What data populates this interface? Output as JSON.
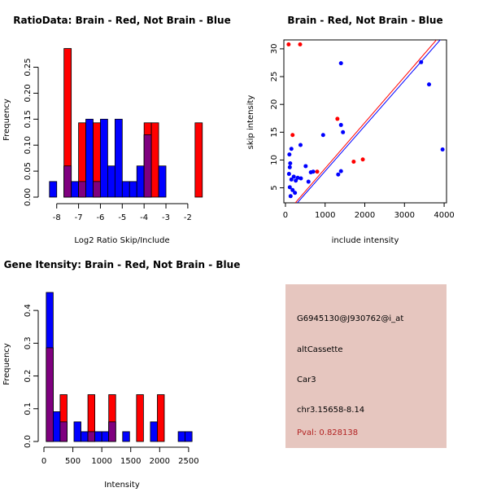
{
  "colors": {
    "brain": "#ff0000",
    "not_brain": "#0000ff",
    "overlap": "#7f007f",
    "panel_bg": "#e6c6bf",
    "pval_text": "#b22222"
  },
  "chart_data": [
    {
      "type": "bar",
      "title": "RatioData: Brain - Red, Not Brain - Blue",
      "xlabel": "Log2 Ratio Skip/Include",
      "ylabel": "Frequency",
      "xlim": [
        -8.4,
        -1.4
      ],
      "ylim": [
        0,
        0.29
      ],
      "xticks": [
        -8,
        -7,
        -6,
        -5,
        -4,
        -3,
        -2
      ],
      "yticks": [
        0.0,
        0.05,
        0.1,
        0.15,
        0.2,
        0.25
      ],
      "bin_width": 0.333,
      "bin_starts": [
        -8.333,
        -8.0,
        -7.667,
        -7.333,
        -7.0,
        -6.667,
        -6.333,
        -6.0,
        -5.667,
        -5.333,
        -5.0,
        -4.667,
        -4.333,
        -4.0,
        -3.667,
        -3.333,
        -3.0,
        -2.667,
        -2.333,
        -2.0,
        -1.667
      ],
      "series": [
        {
          "name": "Brain",
          "color": "#ff0000",
          "values": [
            0,
            0,
            0.286,
            0,
            0.143,
            0,
            0.143,
            0,
            0,
            0,
            0,
            0,
            0,
            0.143,
            0.143,
            0,
            0,
            0,
            0,
            0,
            0.143
          ]
        },
        {
          "name": "Not Brain",
          "color": "#0000ff",
          "values": [
            0.03,
            0,
            0.06,
            0.03,
            0.03,
            0.15,
            0.03,
            0.15,
            0.06,
            0.15,
            0.03,
            0.03,
            0.06,
            0.12,
            0,
            0.06,
            0,
            0,
            0,
            0,
            0
          ]
        }
      ]
    },
    {
      "type": "scatter",
      "title": "Brain - Red, Not Brain - Blue",
      "xlabel": "include intensity",
      "ylabel": "skip intensity",
      "xlim": [
        -40,
        4060
      ],
      "ylim": [
        2.3,
        31.6
      ],
      "xticks": [
        0,
        1000,
        2000,
        3000,
        4000
      ],
      "yticks": [
        5,
        10,
        15,
        20,
        25,
        30
      ],
      "series": [
        {
          "name": "Brain",
          "color": "#ff0000",
          "points": [
            [
              80,
              30.8
            ],
            [
              370,
              30.8
            ],
            [
              180,
              14.5
            ],
            [
              1310,
              17.4
            ],
            [
              1720,
              9.7
            ],
            [
              1950,
              10.1
            ],
            [
              800,
              7.9
            ]
          ]
        },
        {
          "name": "Not Brain",
          "color": "#0000ff",
          "points": [
            [
              1400,
              27.4
            ],
            [
              3620,
              23.6
            ],
            [
              3960,
              11.9
            ],
            [
              3420,
              27.6
            ],
            [
              100,
              11
            ],
            [
              150,
              12
            ],
            [
              380,
              12.7
            ],
            [
              950,
              14.5
            ],
            [
              1400,
              16.3
            ],
            [
              1450,
              15
            ],
            [
              110,
              8.7
            ],
            [
              120,
              9.4
            ],
            [
              90,
              7.5
            ],
            [
              150,
              6.5
            ],
            [
              210,
              7
            ],
            [
              260,
              6.3
            ],
            [
              310,
              6.8
            ],
            [
              390,
              6.7
            ],
            [
              510,
              8.9
            ],
            [
              640,
              7.8
            ],
            [
              700,
              7.9
            ],
            [
              110,
              5.1
            ],
            [
              180,
              4.6
            ],
            [
              130,
              3.5
            ],
            [
              240,
              4.1
            ],
            [
              580,
              6.1
            ],
            [
              1330,
              7.4
            ],
            [
              1400,
              8
            ]
          ]
        }
      ],
      "lines": [
        {
          "name": "Brain fit",
          "color": "#ff0000",
          "from": [
            250,
            2.3
          ],
          "to": [
            4060,
            33.7
          ]
        },
        {
          "name": "Not Brain fit",
          "color": "#0000ff",
          "from": [
            300,
            2.3
          ],
          "to": [
            4060,
            32.9
          ]
        }
      ]
    },
    {
      "type": "bar",
      "title": "Gene Itensity: Brain - Red, Not Brain - Blue",
      "xlabel": "Intensity",
      "ylabel": "Frequency",
      "xlim": [
        0,
        2600
      ],
      "ylim": [
        0,
        0.46
      ],
      "xticks": [
        0,
        500,
        1000,
        1500,
        2000,
        2500
      ],
      "yticks": [
        0.0,
        0.1,
        0.2,
        0.3,
        0.4
      ],
      "bin_width": 120,
      "bin_starts": [
        40,
        160,
        280,
        400,
        520,
        640,
        760,
        880,
        1000,
        1120,
        1240,
        1360,
        1480,
        1600,
        1720,
        1840,
        1960,
        2080,
        2200,
        2320,
        2440
      ],
      "series": [
        {
          "name": "Brain",
          "color": "#ff0000",
          "values": [
            0.286,
            0,
            0.143,
            0,
            0,
            0,
            0.143,
            0,
            0,
            0.143,
            0,
            0,
            0,
            0.143,
            0,
            0,
            0.143,
            0,
            0,
            0,
            0
          ]
        },
        {
          "name": "Not Brain",
          "color": "#0000ff",
          "values": [
            0.455,
            0.091,
            0.06,
            0,
            0.06,
            0.03,
            0.03,
            0.03,
            0.03,
            0.06,
            0,
            0.03,
            0,
            0,
            0,
            0.06,
            0,
            0,
            0,
            0.03,
            0.03
          ]
        }
      ]
    }
  ],
  "info": {
    "probe_id": "G6945130@J930762@i_at",
    "event_type": "altCassette",
    "gene": "Car3",
    "location": "chr3.15658-8.14",
    "pval": "Pval: 0.828138"
  }
}
